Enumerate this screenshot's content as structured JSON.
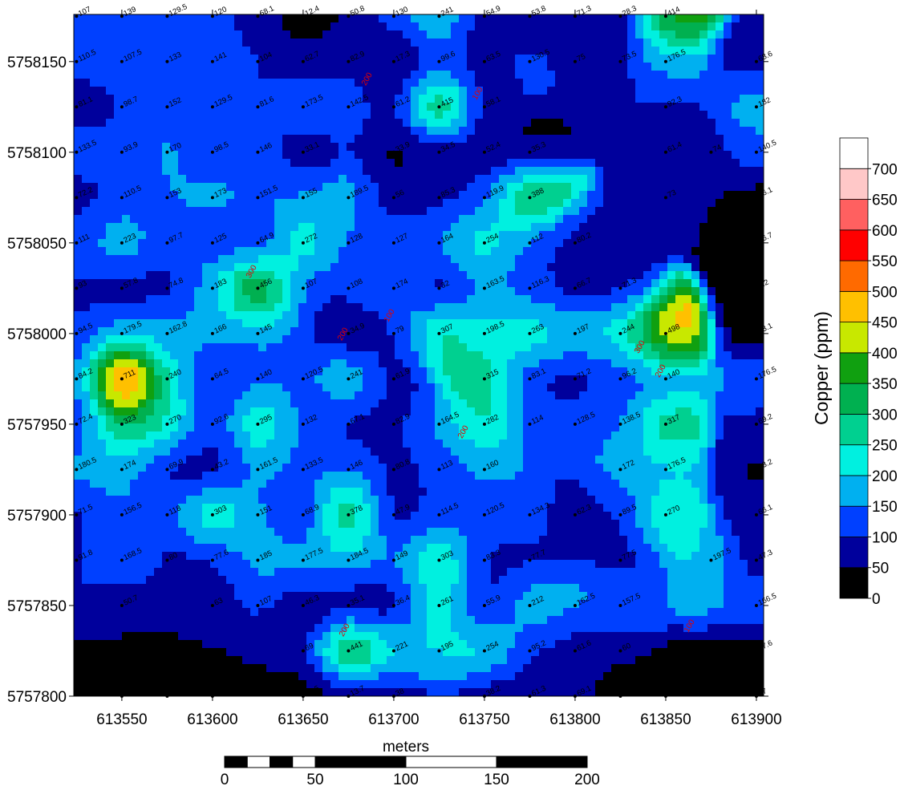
{
  "map": {
    "xlim": [
      613523.5,
      613904
    ],
    "ylim": [
      5757800,
      5758176
    ],
    "xticks": [
      613550,
      613600,
      613650,
      613700,
      613750,
      613800,
      613850,
      613900
    ],
    "yticks": [
      5757800,
      5757850,
      5757900,
      5757950,
      5758000,
      5758050,
      5758100,
      5758150
    ],
    "contour_labels": [
      100,
      200,
      300,
      200,
      100,
      200,
      300,
      200,
      100,
      200
    ],
    "samples": [
      [
        613525,
        5758175,
        107
      ],
      [
        613550,
        5758175,
        139
      ],
      [
        613575,
        5758175,
        129.5
      ],
      [
        613600,
        5758175,
        120
      ],
      [
        613625,
        5758175,
        68.1
      ],
      [
        613650,
        5758175,
        12.4
      ],
      [
        613675,
        5758175,
        50.8
      ],
      [
        613700,
        5758175,
        130
      ],
      [
        613725,
        5758175,
        241
      ],
      [
        613750,
        5758175,
        54.9
      ],
      [
        613775,
        5758175,
        53.8
      ],
      [
        613800,
        5758175,
        71.3
      ],
      [
        613825,
        5758175,
        28.3
      ],
      [
        613850,
        5758175,
        414
      ],
      [
        613525,
        5758150,
        110.5
      ],
      [
        613550,
        5758150,
        107.5
      ],
      [
        613575,
        5758150,
        133
      ],
      [
        613600,
        5758150,
        141
      ],
      [
        613625,
        5758150,
        104
      ],
      [
        613650,
        5758150,
        62.7
      ],
      [
        613675,
        5758150,
        82.9
      ],
      [
        613700,
        5758150,
        17.3
      ],
      [
        613725,
        5758150,
        99.6
      ],
      [
        613750,
        5758150,
        63.5
      ],
      [
        613775,
        5758150,
        130.5
      ],
      [
        613800,
        5758150,
        75
      ],
      [
        613825,
        5758150,
        73.5
      ],
      [
        613850,
        5758150,
        176.5
      ],
      [
        613900,
        5758150,
        68.6
      ],
      [
        613525,
        5758125,
        81.1
      ],
      [
        613550,
        5758125,
        98.7
      ],
      [
        613575,
        5758125,
        152
      ],
      [
        613600,
        5758125,
        129.5
      ],
      [
        613625,
        5758125,
        81.6
      ],
      [
        613650,
        5758125,
        173.5
      ],
      [
        613675,
        5758125,
        142.5
      ],
      [
        613700,
        5758125,
        61.2
      ],
      [
        613725,
        5758125,
        415
      ],
      [
        613750,
        5758125,
        58.1
      ],
      [
        613850,
        5758125,
        92.3
      ],
      [
        613900,
        5758125,
        182
      ],
      [
        613525,
        5758100,
        133.5
      ],
      [
        613550,
        5758100,
        93.9
      ],
      [
        613575,
        5758100,
        170
      ],
      [
        613600,
        5758100,
        98.5
      ],
      [
        613625,
        5758100,
        146
      ],
      [
        613650,
        5758100,
        33.1
      ],
      [
        613700,
        5758100,
        33.9
      ],
      [
        613725,
        5758100,
        34.5
      ],
      [
        613750,
        5758100,
        52.4
      ],
      [
        613775,
        5758100,
        35.3
      ],
      [
        613850,
        5758100,
        61.4
      ],
      [
        613875,
        5758100,
        74
      ],
      [
        613900,
        5758100,
        140.5
      ],
      [
        613525,
        5758075,
        72.2
      ],
      [
        613550,
        5758075,
        110.5
      ],
      [
        613575,
        5758075,
        153
      ],
      [
        613600,
        5758075,
        173
      ],
      [
        613625,
        5758075,
        151.5
      ],
      [
        613650,
        5758075,
        155
      ],
      [
        613675,
        5758075,
        189.5
      ],
      [
        613700,
        5758075,
        56
      ],
      [
        613725,
        5758075,
        85.3
      ],
      [
        613750,
        5758075,
        119.9
      ],
      [
        613775,
        5758075,
        388
      ],
      [
        613850,
        5758075,
        73
      ],
      [
        613900,
        5758075,
        16.1
      ],
      [
        613525,
        5758050,
        111
      ],
      [
        613550,
        5758050,
        223
      ],
      [
        613575,
        5758050,
        97.7
      ],
      [
        613600,
        5758050,
        125
      ],
      [
        613625,
        5758050,
        64.9
      ],
      [
        613650,
        5758050,
        272
      ],
      [
        613675,
        5758050,
        128
      ],
      [
        613700,
        5758050,
        127
      ],
      [
        613725,
        5758050,
        164
      ],
      [
        613750,
        5758050,
        254
      ],
      [
        613775,
        5758050,
        112
      ],
      [
        613800,
        5758050,
        80.2
      ],
      [
        613900,
        5758050,
        16.7
      ],
      [
        613525,
        5758025,
        93
      ],
      [
        613550,
        5758025,
        57.8
      ],
      [
        613575,
        5758025,
        74.8
      ],
      [
        613600,
        5758025,
        183
      ],
      [
        613625,
        5758025,
        456
      ],
      [
        613650,
        5758025,
        107
      ],
      [
        613675,
        5758025,
        108
      ],
      [
        613700,
        5758025,
        174
      ],
      [
        613725,
        5758025,
        32
      ],
      [
        613750,
        5758025,
        163.5
      ],
      [
        613775,
        5758025,
        116.3
      ],
      [
        613800,
        5758025,
        66.7
      ],
      [
        613825,
        5758025,
        71.3
      ],
      [
        613900,
        5758025,
        8.2
      ],
      [
        613525,
        5758000,
        94.5
      ],
      [
        613550,
        5758000,
        179.5
      ],
      [
        613575,
        5758000,
        162.8
      ],
      [
        613600,
        5758000,
        166
      ],
      [
        613625,
        5758000,
        145
      ],
      [
        613675,
        5758000,
        34.9
      ],
      [
        613700,
        5758000,
        79
      ],
      [
        613725,
        5758000,
        307
      ],
      [
        613750,
        5758000,
        198.5
      ],
      [
        613775,
        5758000,
        263
      ],
      [
        613800,
        5758000,
        197
      ],
      [
        613825,
        5758000,
        244
      ],
      [
        613850,
        5758000,
        498
      ],
      [
        613900,
        5758000,
        13.1
      ],
      [
        613525,
        5757975,
        84.2
      ],
      [
        613550,
        5757975,
        711
      ],
      [
        613575,
        5757975,
        240
      ],
      [
        613600,
        5757975,
        64.5
      ],
      [
        613625,
        5757975,
        140
      ],
      [
        613650,
        5757975,
        120.5
      ],
      [
        613675,
        5757975,
        241
      ],
      [
        613700,
        5757975,
        61.9
      ],
      [
        613750,
        5757975,
        315
      ],
      [
        613775,
        5757975,
        83.1
      ],
      [
        613800,
        5757975,
        71.2
      ],
      [
        613825,
        5757975,
        96.2
      ],
      [
        613850,
        5757975,
        140
      ],
      [
        613900,
        5757975,
        176.5
      ],
      [
        613525,
        5757950,
        72.4
      ],
      [
        613550,
        5757950,
        323
      ],
      [
        613575,
        5757950,
        270
      ],
      [
        613600,
        5757950,
        92.6
      ],
      [
        613625,
        5757950,
        295
      ],
      [
        613650,
        5757950,
        132
      ],
      [
        613675,
        5757950,
        67.1
      ],
      [
        613700,
        5757950,
        82.9
      ],
      [
        613725,
        5757950,
        164.5
      ],
      [
        613750,
        5757950,
        282
      ],
      [
        613775,
        5757950,
        114
      ],
      [
        613800,
        5757950,
        128.5
      ],
      [
        613825,
        5757950,
        138.5
      ],
      [
        613850,
        5757950,
        317
      ],
      [
        613900,
        5757950,
        69.2
      ],
      [
        613525,
        5757925,
        180.5
      ],
      [
        613550,
        5757925,
        174
      ],
      [
        613575,
        5757925,
        69.9
      ],
      [
        613600,
        5757925,
        43.2
      ],
      [
        613625,
        5757925,
        161.5
      ],
      [
        613650,
        5757925,
        133.5
      ],
      [
        613675,
        5757925,
        146
      ],
      [
        613700,
        5757925,
        80.8
      ],
      [
        613725,
        5757925,
        113
      ],
      [
        613750,
        5757925,
        160
      ],
      [
        613825,
        5757925,
        172
      ],
      [
        613850,
        5757925,
        176.5
      ],
      [
        613900,
        5757925,
        43.2
      ],
      [
        613525,
        5757900,
        71.5
      ],
      [
        613550,
        5757900,
        156.5
      ],
      [
        613575,
        5757900,
        118
      ],
      [
        613600,
        5757900,
        303
      ],
      [
        613625,
        5757900,
        151
      ],
      [
        613650,
        5757900,
        68.9
      ],
      [
        613675,
        5757900,
        378
      ],
      [
        613700,
        5757900,
        47.9
      ],
      [
        613725,
        5757900,
        114.5
      ],
      [
        613750,
        5757900,
        120.5
      ],
      [
        613775,
        5757900,
        134.3
      ],
      [
        613800,
        5757900,
        62.3
      ],
      [
        613825,
        5757900,
        89.5
      ],
      [
        613850,
        5757900,
        270
      ],
      [
        613900,
        5757900,
        66.1
      ],
      [
        613525,
        5757875,
        91.8
      ],
      [
        613550,
        5757875,
        168.5
      ],
      [
        613575,
        5757875,
        80
      ],
      [
        613600,
        5757875,
        77.6
      ],
      [
        613625,
        5757875,
        185
      ],
      [
        613650,
        5757875,
        177.5
      ],
      [
        613675,
        5757875,
        184.5
      ],
      [
        613700,
        5757875,
        149
      ],
      [
        613725,
        5757875,
        303
      ],
      [
        613750,
        5757875,
        83.3
      ],
      [
        613775,
        5757875,
        77.7
      ],
      [
        613825,
        5757875,
        77.5
      ],
      [
        613875,
        5757875,
        197.5
      ],
      [
        613900,
        5757875,
        47.3
      ],
      [
        613550,
        5757850,
        50.7
      ],
      [
        613600,
        5757850,
        63
      ],
      [
        613625,
        5757850,
        107
      ],
      [
        613650,
        5757850,
        46.3
      ],
      [
        613675,
        5757850,
        35.1
      ],
      [
        613700,
        5757850,
        36.4
      ],
      [
        613725,
        5757850,
        261
      ],
      [
        613750,
        5757850,
        55.9
      ],
      [
        613775,
        5757850,
        212
      ],
      [
        613800,
        5757850,
        162.5
      ],
      [
        613825,
        5757850,
        157.5
      ],
      [
        613900,
        5757850,
        166.5
      ],
      [
        613650,
        5757825,
        69
      ],
      [
        613675,
        5757825,
        441
      ],
      [
        613700,
        5757825,
        221
      ],
      [
        613725,
        5757825,
        195
      ],
      [
        613750,
        5757825,
        254
      ],
      [
        613775,
        5757825,
        95.2
      ],
      [
        613800,
        5757825,
        61.6
      ],
      [
        613825,
        5757825,
        60
      ],
      [
        613900,
        5757825,
        17.6
      ],
      [
        613550,
        5757800,
        29
      ],
      [
        613575,
        5757800,
        9
      ],
      [
        613600,
        5757800,
        15
      ],
      [
        613650,
        5757800,
        12.5
      ],
      [
        613675,
        5757800,
        13.7
      ],
      [
        613700,
        5757800,
        38
      ],
      [
        613750,
        5757800,
        38.2
      ],
      [
        613775,
        5757800,
        61.3
      ],
      [
        613800,
        5757800,
        69.1
      ],
      [
        613825,
        5757800,
        17.1
      ],
      [
        613850,
        5757800,
        5
      ],
      [
        613900,
        5757800,
        37
      ]
    ]
  },
  "colorbar": {
    "title": "Copper (ppm)",
    "lim": [
      0,
      750
    ],
    "ticks": [
      0,
      50,
      100,
      150,
      200,
      250,
      300,
      350,
      400,
      450,
      500,
      550,
      600,
      650,
      700
    ],
    "colors": [
      "#000000",
      "#00009c",
      "#0040ff",
      "#00b0f0",
      "#00f0e0",
      "#00d090",
      "#00b050",
      "#10a010",
      "#c8e800",
      "#ffc000",
      "#ff6a00",
      "#ff0000",
      "#ff6060",
      "#ffc8c8",
      "#ffffff"
    ]
  },
  "scale_bar": {
    "title": "meters",
    "lim": [
      0,
      200
    ],
    "ticks": [
      0,
      50,
      100,
      150,
      200
    ]
  }
}
